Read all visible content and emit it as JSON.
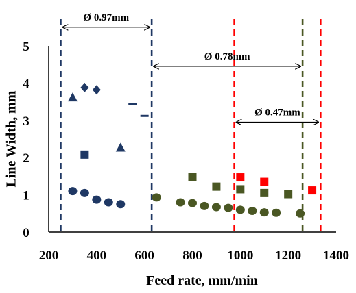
{
  "chart_data": {
    "type": "scatter",
    "xlabel": "Feed rate, mm/min",
    "ylabel": "Line Width, mm",
    "xlim": [
      200,
      1400
    ],
    "ylim": [
      0,
      5
    ],
    "x_ticks": [
      "200",
      "400",
      "600",
      "800",
      "1000",
      "1200",
      "1400"
    ],
    "y_ticks": [
      "0",
      "1",
      "2",
      "3",
      "4",
      "5"
    ],
    "grid": false,
    "series": [
      {
        "color": "#1f3864",
        "marker": "circle",
        "x": [
          300,
          350,
          400,
          450,
          500
        ],
        "y": [
          1.1,
          1.05,
          0.87,
          0.8,
          0.75
        ]
      },
      {
        "color": "#1f3864",
        "marker": "triangle",
        "x": [
          300,
          500
        ],
        "y": [
          3.62,
          2.27
        ]
      },
      {
        "color": "#1f3864",
        "marker": "diamond",
        "x": [
          350,
          400
        ],
        "y": [
          3.88,
          3.82
        ]
      },
      {
        "color": "#1f3864",
        "marker": "square",
        "x": [
          350
        ],
        "y": [
          2.08
        ]
      },
      {
        "color": "#1f3864",
        "marker": "dash",
        "x": [
          550,
          600
        ],
        "y": [
          3.43,
          3.12
        ]
      },
      {
        "color": "#4a5723",
        "marker": "circle",
        "x": [
          650,
          750,
          800,
          850,
          900,
          950,
          1000,
          1050,
          1100,
          1150,
          1250
        ],
        "y": [
          0.93,
          0.8,
          0.78,
          0.7,
          0.67,
          0.65,
          0.6,
          0.57,
          0.53,
          0.52,
          0.5
        ]
      },
      {
        "color": "#4a5723",
        "marker": "square",
        "x": [
          800,
          900,
          1000,
          1100,
          1200
        ],
        "y": [
          1.48,
          1.22,
          1.15,
          1.05,
          1.02
        ]
      },
      {
        "color": "#ff0000",
        "marker": "square",
        "x": [
          1000,
          1100,
          1300
        ],
        "y": [
          1.47,
          1.35,
          1.12
        ]
      }
    ],
    "vlines": [
      {
        "x": 250,
        "color": "#1f3864"
      },
      {
        "x": 630,
        "color": "#1f3864"
      },
      {
        "x": 975,
        "color": "#ff0000"
      },
      {
        "x": 1260,
        "color": "#4a5723"
      },
      {
        "x": 1335,
        "color": "#ff0000"
      }
    ],
    "annotations": [
      {
        "text": "Ø 0.97mm",
        "x1": 250,
        "x2": 630,
        "y": 5.5
      },
      {
        "text": "Ø 0.78mm",
        "x1": 630,
        "x2": 1260,
        "y": 4.45
      },
      {
        "text": "Ø 0.47mm",
        "x1": 975,
        "x2": 1335,
        "y": 2.95
      }
    ]
  }
}
